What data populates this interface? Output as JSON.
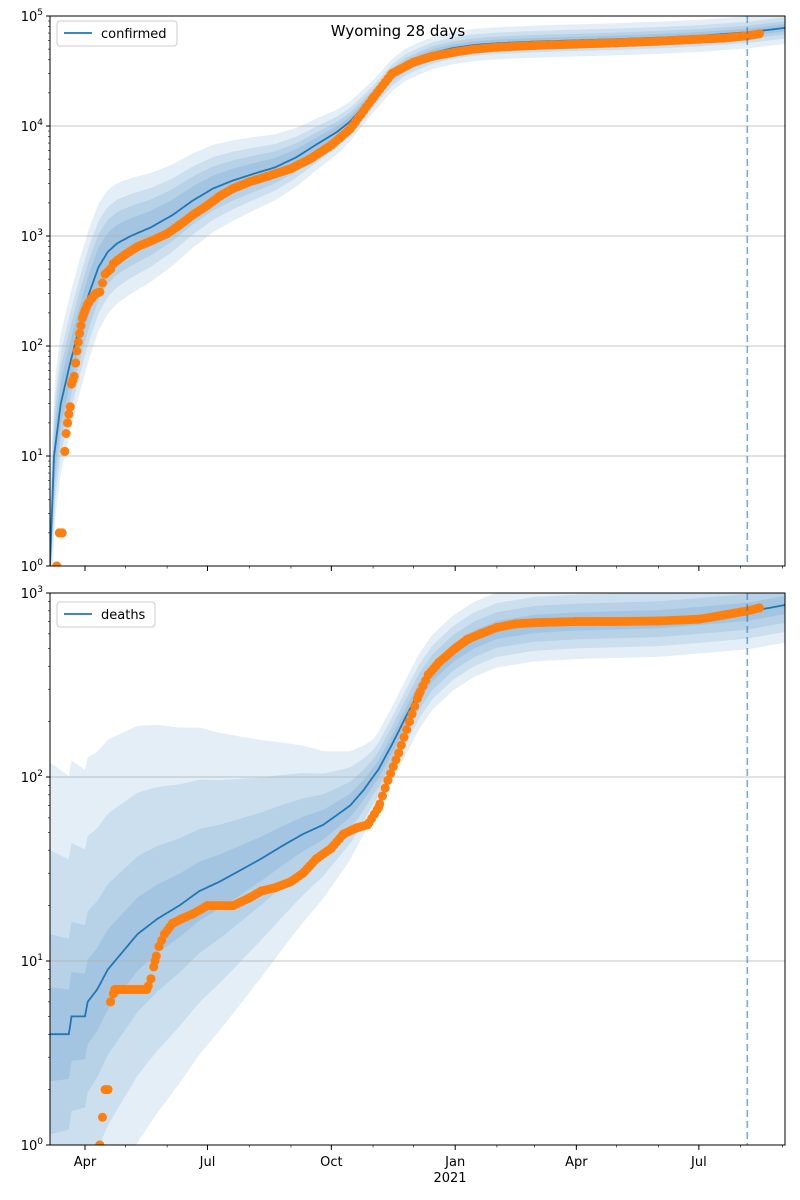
{
  "suptitle": "Wyoming 28 days",
  "x_ticks": [
    "Apr",
    "Jul",
    "Oct",
    "Jan",
    "Apr",
    "Jul"
  ],
  "x_year_label": "2021",
  "colors": {
    "model": "#1f77b4",
    "observed": "#ff7f0e",
    "band": "#1f77b4",
    "forecast_line": "#1f77b4",
    "grid": "#b0b0b0"
  },
  "chart_data": [
    {
      "type": "line",
      "panel": "top",
      "yscale": "log",
      "ylim": [
        1,
        100000
      ],
      "xlim": [
        "2020-03-06",
        "2021-09-03"
      ],
      "y_tick_labels": [
        "10^0",
        "10^1",
        "10^2",
        "10^3",
        "10^4",
        "10^5"
      ],
      "grid": "y",
      "legend": {
        "placement": "top-left",
        "entries": [
          "confirmed"
        ]
      },
      "forecast_start": "2021-08-06",
      "series": [
        {
          "name": "confirmed",
          "kind": "model",
          "x": [
            "2020-03-06",
            "2020-03-09",
            "2020-03-14",
            "2020-03-21",
            "2020-03-28",
            "2020-04-04",
            "2020-04-11",
            "2020-04-18",
            "2020-04-25",
            "2020-05-05",
            "2020-05-20",
            "2020-06-05",
            "2020-06-20",
            "2020-07-05",
            "2020-07-20",
            "2020-08-05",
            "2020-08-20",
            "2020-09-05",
            "2020-09-20",
            "2020-10-05",
            "2020-10-15",
            "2020-10-25",
            "2020-11-05",
            "2020-11-15",
            "2020-11-25",
            "2020-12-05",
            "2020-12-15",
            "2020-12-30",
            "2021-01-15",
            "2021-02-01",
            "2021-03-01",
            "2021-04-01",
            "2021-05-01",
            "2021-06-01",
            "2021-07-01",
            "2021-08-06",
            "2021-09-03"
          ],
          "y": [
            1,
            10,
            30,
            70,
            150,
            300,
            520,
            720,
            860,
            1000,
            1200,
            1550,
            2100,
            2700,
            3200,
            3700,
            4200,
            5200,
            6800,
            8800,
            11000,
            15000,
            21000,
            29000,
            36000,
            41000,
            46000,
            51000,
            54500,
            56500,
            58500,
            60000,
            61500,
            63500,
            66000,
            71000,
            78000
          ],
          "band_levels": [
            0.5,
            0.8,
            0.95,
            0.99
          ],
          "band_halfwidth_factors": [
            1.08,
            1.15,
            1.25,
            1.4
          ],
          "band_early_factors": [
            1.6,
            2.2,
            3.0,
            4.5
          ]
        },
        {
          "name": "observed confirmed",
          "kind": "observed",
          "x": [
            "2020-03-11",
            "2020-03-13",
            "2020-03-15",
            "2020-03-17",
            "2020-03-18",
            "2020-03-19",
            "2020-03-20",
            "2020-03-21",
            "2020-03-22",
            "2020-03-24",
            "2020-03-25",
            "2020-03-26",
            "2020-03-28",
            "2020-03-30",
            "2020-04-01",
            "2020-04-03",
            "2020-04-06",
            "2020-04-09",
            "2020-04-12",
            "2020-04-16",
            "2020-04-20",
            "2020-04-22",
            "2020-04-25",
            "2020-05-01",
            "2020-05-10",
            "2020-05-20",
            "2020-06-01",
            "2020-06-10",
            "2020-06-20",
            "2020-07-01",
            "2020-07-10",
            "2020-07-20",
            "2020-08-01",
            "2020-08-15",
            "2020-09-01",
            "2020-09-15",
            "2020-10-01",
            "2020-10-15",
            "2020-11-01",
            "2020-11-15",
            "2020-12-01",
            "2020-12-15",
            "2021-01-01",
            "2021-01-15",
            "2021-02-01",
            "2021-03-01",
            "2021-04-01",
            "2021-05-01",
            "2021-06-01",
            "2021-07-01",
            "2021-07-20",
            "2021-08-06",
            "2021-08-15"
          ],
          "y": [
            1,
            2,
            2,
            11,
            16,
            20,
            24,
            28,
            45,
            53,
            70,
            90,
            130,
            180,
            210,
            240,
            270,
            300,
            310,
            450,
            500,
            560,
            600,
            680,
            800,
            900,
            1050,
            1250,
            1550,
            1900,
            2300,
            2700,
            3100,
            3500,
            4100,
            5000,
            6700,
            9400,
            18000,
            30000,
            38000,
            43000,
            47000,
            50000,
            52000,
            54000,
            55500,
            57000,
            59000,
            61500,
            63000,
            66000,
            69000
          ]
        }
      ]
    },
    {
      "type": "line",
      "panel": "bottom",
      "yscale": "log",
      "ylim": [
        1,
        1000
      ],
      "xlim": [
        "2020-03-06",
        "2021-09-03"
      ],
      "y_tick_labels": [
        "10^0",
        "10^1",
        "10^2",
        "10^3"
      ],
      "grid": "y",
      "legend": {
        "placement": "top-left",
        "entries": [
          "deaths"
        ]
      },
      "forecast_start": "2021-08-06",
      "series": [
        {
          "name": "deaths",
          "kind": "model",
          "x": [
            "2020-03-06",
            "2020-03-20",
            "2020-03-22",
            "2020-04-01",
            "2020-04-03",
            "2020-04-10",
            "2020-04-18",
            "2020-04-28",
            "2020-05-10",
            "2020-05-25",
            "2020-06-10",
            "2020-06-25",
            "2020-07-10",
            "2020-07-25",
            "2020-08-10",
            "2020-08-25",
            "2020-09-10",
            "2020-09-25",
            "2020-10-05",
            "2020-10-15",
            "2020-10-25",
            "2020-11-05",
            "2020-11-15",
            "2020-11-25",
            "2020-12-05",
            "2020-12-15",
            "2020-12-30",
            "2021-01-15",
            "2021-02-01",
            "2021-03-01",
            "2021-04-01",
            "2021-05-01",
            "2021-06-01",
            "2021-07-01",
            "2021-08-06",
            "2021-09-03"
          ],
          "y": [
            4,
            4,
            5,
            5,
            6,
            7,
            9,
            11,
            14,
            17,
            20,
            24,
            27,
            31,
            36,
            42,
            49,
            55,
            62,
            70,
            85,
            110,
            150,
            210,
            290,
            370,
            470,
            560,
            630,
            680,
            700,
            710,
            720,
            750,
            790,
            860
          ],
          "band_levels": [
            0.5,
            0.8,
            0.95,
            0.99
          ],
          "band_halfwidth_factors": [
            1.12,
            1.25,
            1.4,
            1.6
          ],
          "band_early_factors": [
            1.8,
            3.5,
            10.0,
            30.0
          ]
        },
        {
          "name": "observed deaths",
          "kind": "observed",
          "x": [
            "2020-04-12",
            "2020-04-16",
            "2020-04-18",
            "2020-04-20",
            "2020-04-23",
            "2020-04-26",
            "2020-04-29",
            "2020-05-02",
            "2020-05-05",
            "2020-05-08",
            "2020-05-11",
            "2020-05-14",
            "2020-05-17",
            "2020-05-20",
            "2020-05-23",
            "2020-05-26",
            "2020-05-30",
            "2020-06-05",
            "2020-06-12",
            "2020-06-20",
            "2020-07-01",
            "2020-07-10",
            "2020-07-20",
            "2020-08-01",
            "2020-08-10",
            "2020-08-20",
            "2020-09-01",
            "2020-09-10",
            "2020-09-20",
            "2020-10-01",
            "2020-10-10",
            "2020-10-20",
            "2020-10-28",
            "2020-11-05",
            "2020-11-12",
            "2020-11-20",
            "2020-11-28",
            "2020-12-05",
            "2020-12-12",
            "2020-12-20",
            "2021-01-01",
            "2021-01-10",
            "2021-01-20",
            "2021-02-01",
            "2021-02-15",
            "2021-03-01",
            "2021-04-01",
            "2021-05-01",
            "2021-06-01",
            "2021-07-01",
            "2021-07-20",
            "2021-08-06",
            "2021-08-15"
          ],
          "y": [
            1,
            2,
            2,
            6,
            7,
            7,
            7,
            7,
            7,
            7,
            7,
            7,
            7,
            8,
            10,
            12,
            14,
            16,
            17,
            18,
            20,
            20,
            20,
            22,
            24,
            25,
            27,
            30,
            36,
            41,
            49,
            53,
            55,
            68,
            96,
            135,
            200,
            280,
            360,
            420,
            500,
            560,
            600,
            650,
            680,
            690,
            700,
            700,
            705,
            720,
            760,
            800,
            830
          ]
        }
      ]
    }
  ]
}
